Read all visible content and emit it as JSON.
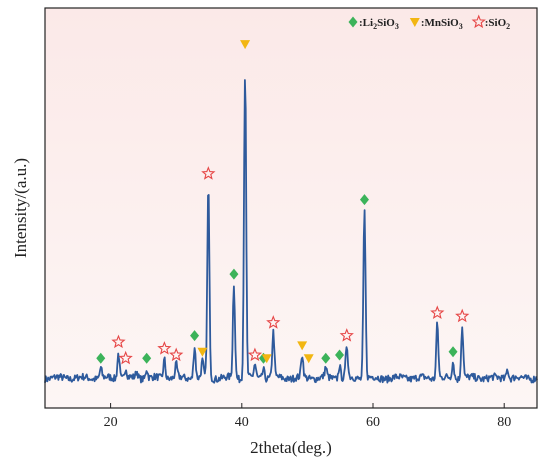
{
  "chart_data": {
    "type": "line",
    "xlabel": "2theta(deg.)",
    "ylabel": "Intensity/(a.u.)",
    "xlim": [
      10,
      85
    ],
    "ylim": [
      0,
      100
    ],
    "xticks": [
      20,
      40,
      60,
      80
    ],
    "y_ticks_labeled": false,
    "grid": false,
    "background": "#fdf1f0",
    "line_color": "#2e5a9c",
    "baseline": 8,
    "peaks": [
      {
        "x": 18.5,
        "h": 3
      },
      {
        "x": 21.2,
        "h": 8
      },
      {
        "x": 22.3,
        "h": 3
      },
      {
        "x": 24.0,
        "h": 2
      },
      {
        "x": 25.5,
        "h": 3
      },
      {
        "x": 28.2,
        "h": 6
      },
      {
        "x": 30.0,
        "h": 4
      },
      {
        "x": 32.8,
        "h": 10
      },
      {
        "x": 34.0,
        "h": 5
      },
      {
        "x": 34.9,
        "h": 60
      },
      {
        "x": 38.8,
        "h": 29
      },
      {
        "x": 40.5,
        "h": 100
      },
      {
        "x": 42.0,
        "h": 4
      },
      {
        "x": 43.3,
        "h": 3
      },
      {
        "x": 44.8,
        "h": 14
      },
      {
        "x": 49.2,
        "h": 7
      },
      {
        "x": 52.8,
        "h": 3
      },
      {
        "x": 54.9,
        "h": 4
      },
      {
        "x": 56.0,
        "h": 10
      },
      {
        "x": 58.7,
        "h": 52
      },
      {
        "x": 69.8,
        "h": 17
      },
      {
        "x": 72.2,
        "h": 5
      },
      {
        "x": 73.6,
        "h": 16
      },
      {
        "x": 80.5,
        "h": 3
      }
    ],
    "legend": {
      "placement": "top-right",
      "entries": [
        {
          "marker": "diamond",
          "color": "#3cb35a",
          "label": "Li",
          "sub": "2",
          "rest": "SiO",
          "sub2": "3"
        },
        {
          "marker": "triangle-down",
          "color": "#f2b612",
          "label": "MnSiO",
          "sub": "3",
          "rest": "",
          "sub2": ""
        },
        {
          "marker": "star-open",
          "color": "#e64646",
          "label": "SiO",
          "sub": "2",
          "rest": "",
          "sub2": ""
        }
      ]
    },
    "phase_markers": [
      {
        "phase": "Li2SiO3",
        "x": 18.5
      },
      {
        "phase": "SiO2",
        "x": 21.2
      },
      {
        "phase": "SiO2",
        "x": 22.3
      },
      {
        "phase": "Li2SiO3",
        "x": 25.5
      },
      {
        "phase": "SiO2",
        "x": 28.2
      },
      {
        "phase": "SiO2",
        "x": 30.0
      },
      {
        "phase": "Li2SiO3",
        "x": 32.8
      },
      {
        "phase": "MnSiO3",
        "x": 34.0
      },
      {
        "phase": "SiO2",
        "x": 34.9
      },
      {
        "phase": "Li2SiO3",
        "x": 38.8
      },
      {
        "phase": "MnSiO3",
        "x": 40.5
      },
      {
        "phase": "SiO2",
        "x": 42.0
      },
      {
        "phase": "Li2SiO3",
        "x": 43.3
      },
      {
        "phase": "MnSiO3",
        "x": 43.8
      },
      {
        "phase": "SiO2",
        "x": 44.8
      },
      {
        "phase": "MnSiO3",
        "x": 49.2
      },
      {
        "phase": "MnSiO3",
        "x": 50.2
      },
      {
        "phase": "Li2SiO3",
        "x": 52.8
      },
      {
        "phase": "Li2SiO3",
        "x": 54.9
      },
      {
        "phase": "SiO2",
        "x": 56.0
      },
      {
        "phase": "Li2SiO3",
        "x": 58.7
      },
      {
        "phase": "SiO2",
        "x": 69.8
      },
      {
        "phase": "Li2SiO3",
        "x": 72.2
      },
      {
        "phase": "SiO2",
        "x": 73.6
      }
    ]
  }
}
